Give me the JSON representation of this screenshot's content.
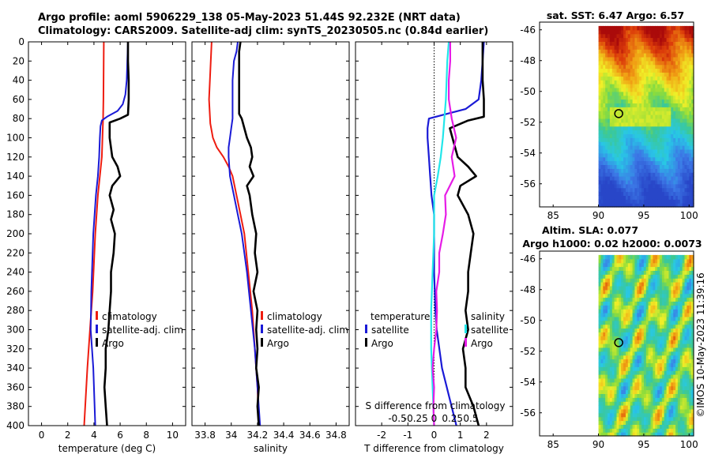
{
  "header": {
    "line1": "Argo profile: aoml 5906229_138 05-May-2023 51.44S 92.232E (NRT data)",
    "line2": "Climatology: CARS2009. Satellite-adj clim: synTS_20230505.nc (0.84d earlier)"
  },
  "colors": {
    "climatology": "#ee1c10",
    "satellite": "#1a1ad6",
    "argo": "#000000",
    "sal_satellite": "#22e6ea",
    "sal_argo": "#e61ce6",
    "zero_line": "#000000"
  },
  "chart_data": [
    {
      "type": "line",
      "name": "temperature",
      "xlabel": "temperature (deg C)",
      "ylabel": "",
      "xlim": [
        -1,
        11
      ],
      "ylim": [
        400,
        0
      ],
      "xticks": [
        0,
        2,
        4,
        6,
        8,
        10
      ],
      "yticks": [
        0,
        20,
        40,
        60,
        80,
        100,
        120,
        140,
        160,
        180,
        200,
        220,
        240,
        260,
        280,
        300,
        320,
        340,
        360,
        380,
        400
      ],
      "legend": [
        "climatology",
        "satellite-adj. clim",
        "Argo"
      ],
      "legend_position": "lower-right",
      "series": [
        {
          "name": "climatology",
          "depth": [
            0,
            60,
            80,
            100,
            120,
            140,
            160,
            200,
            260,
            300,
            340,
            400
          ],
          "values": [
            4.75,
            4.72,
            4.7,
            4.65,
            4.6,
            4.45,
            4.3,
            4.1,
            3.9,
            3.7,
            3.5,
            3.25
          ]
        },
        {
          "name": "satellite-adj. clim",
          "depth": [
            0,
            20,
            40,
            55,
            65,
            72,
            78,
            82,
            88,
            100,
            120,
            140,
            160,
            200,
            260,
            300,
            340,
            400
          ],
          "values": [
            6.6,
            6.55,
            6.5,
            6.4,
            6.2,
            5.8,
            5.0,
            4.6,
            4.5,
            4.45,
            4.4,
            4.3,
            4.15,
            3.95,
            3.8,
            3.75,
            3.95,
            4.1
          ]
        },
        {
          "name": "Argo",
          "depth": [
            0,
            20,
            40,
            60,
            76,
            80,
            84,
            100,
            120,
            130,
            140,
            150,
            160,
            175,
            185,
            200,
            220,
            240,
            260,
            280,
            300,
            320,
            340,
            360,
            380,
            400
          ],
          "values": [
            6.6,
            6.6,
            6.65,
            6.65,
            6.6,
            6.0,
            5.2,
            5.2,
            5.4,
            5.8,
            6.0,
            5.4,
            5.2,
            5.5,
            5.3,
            5.6,
            5.5,
            5.3,
            5.3,
            5.2,
            5.1,
            4.9,
            4.9,
            4.8,
            4.9,
            5.0
          ]
        }
      ]
    },
    {
      "type": "line",
      "name": "salinity",
      "xlabel": "salinity",
      "ylabel": "",
      "xlim": [
        33.7,
        34.9
      ],
      "ylim": [
        400,
        0
      ],
      "xticks": [
        33.8,
        34,
        34.2,
        34.4,
        34.6,
        34.8
      ],
      "legend": [
        "climatology",
        "satellite-adj. clim",
        "Argo"
      ],
      "legend_position": "lower-right",
      "series": [
        {
          "name": "climatology",
          "depth": [
            0,
            60,
            85,
            100,
            110,
            120,
            130,
            140,
            160,
            180,
            200,
            240,
            280,
            320,
            360,
            400
          ],
          "values": [
            33.85,
            33.83,
            33.84,
            33.86,
            33.89,
            33.94,
            33.98,
            34.01,
            34.04,
            34.07,
            34.1,
            34.13,
            34.16,
            34.18,
            34.2,
            34.21
          ]
        },
        {
          "name": "satellite-adj. clim",
          "depth": [
            0,
            10,
            20,
            40,
            60,
            80,
            90,
            100,
            110,
            120,
            140,
            160,
            180,
            200,
            240,
            280,
            320,
            360,
            400
          ],
          "values": [
            34.05,
            34.04,
            34.02,
            34.01,
            34.01,
            34.01,
            34.0,
            33.99,
            33.98,
            33.98,
            33.99,
            34.02,
            34.05,
            34.08,
            34.12,
            34.15,
            34.18,
            34.2,
            34.22
          ]
        },
        {
          "name": "Argo",
          "depth": [
            0,
            10,
            20,
            40,
            60,
            75,
            80,
            90,
            100,
            110,
            120,
            130,
            140,
            150,
            160,
            180,
            200,
            220,
            240,
            260,
            280,
            300,
            320,
            340,
            360,
            380,
            400
          ],
          "values": [
            34.07,
            34.06,
            34.06,
            34.06,
            34.06,
            34.06,
            34.08,
            34.1,
            34.12,
            34.15,
            34.16,
            34.14,
            34.17,
            34.12,
            34.14,
            34.16,
            34.19,
            34.18,
            34.2,
            34.17,
            34.2,
            34.19,
            34.2,
            34.19,
            34.21,
            34.2,
            34.21
          ]
        }
      ]
    },
    {
      "type": "line",
      "name": "differences",
      "xlabel": "T difference from climatology",
      "x2label": "S difference from climatology",
      "xlim": [
        -3,
        3
      ],
      "ylim": [
        400,
        0
      ],
      "xticks": [
        -2,
        -1,
        0,
        1,
        2
      ],
      "x2ticks": [
        -0.5,
        -0.25,
        0,
        0.25,
        0.5
      ],
      "x2tick_labels": [
        "-0.5",
        "-0.25",
        "0",
        "0.25",
        "0.5"
      ],
      "legend": [
        {
          "group": "temperature",
          "items": [
            "satellite",
            "Argo"
          ]
        },
        {
          "group": "salinity",
          "items": [
            "satellite",
            "Argo"
          ]
        }
      ],
      "series": [
        {
          "name": "T satellite",
          "depth": [
            0,
            20,
            40,
            60,
            70,
            75,
            80,
            90,
            100,
            120,
            140,
            160,
            180,
            200,
            240,
            280,
            300,
            340,
            400
          ],
          "values": [
            1.9,
            1.85,
            1.8,
            1.7,
            1.2,
            0.5,
            -0.2,
            -0.25,
            -0.25,
            -0.2,
            -0.15,
            -0.1,
            0.0,
            0.0,
            0.0,
            0.05,
            0.1,
            0.3,
            0.85
          ]
        },
        {
          "name": "T Argo",
          "depth": [
            0,
            20,
            40,
            60,
            78,
            82,
            90,
            100,
            120,
            130,
            140,
            150,
            160,
            180,
            200,
            220,
            240,
            260,
            280,
            300,
            320,
            340,
            360,
            380,
            400
          ],
          "values": [
            1.85,
            1.85,
            1.85,
            1.9,
            1.9,
            1.3,
            0.6,
            0.7,
            0.9,
            1.3,
            1.6,
            1.0,
            0.9,
            1.3,
            1.5,
            1.4,
            1.3,
            1.3,
            1.2,
            1.3,
            1.1,
            1.2,
            1.2,
            1.5,
            1.7
          ]
        },
        {
          "name": "S satellite",
          "depth": [
            0,
            20,
            40,
            60,
            80,
            100,
            120,
            140,
            160,
            200,
            240,
            280,
            320,
            360,
            400
          ],
          "values": [
            0.2,
            0.18,
            0.17,
            0.16,
            0.14,
            0.12,
            0.09,
            0.05,
            0.0,
            0.0,
            -0.02,
            -0.04,
            -0.04,
            -0.02,
            0.0
          ]
        },
        {
          "name": "S Argo",
          "depth": [
            0,
            20,
            40,
            60,
            80,
            100,
            120,
            140,
            160,
            180,
            200,
            220,
            240,
            260,
            280,
            300,
            320,
            340,
            360,
            380,
            400
          ],
          "values": [
            0.22,
            0.22,
            0.2,
            0.2,
            0.24,
            0.3,
            0.24,
            0.28,
            0.15,
            0.16,
            0.12,
            0.07,
            0.07,
            0.03,
            0.04,
            0.03,
            0.0,
            -0.02,
            0.0,
            -0.01,
            0.0
          ]
        }
      ]
    },
    {
      "type": "heatmap",
      "name": "sst-map",
      "title": "sat. SST: 6.47 Argo: 6.57",
      "xlim": [
        83.5,
        100.5
      ],
      "ylim": [
        -57.5,
        -45.5
      ],
      "xticks": [
        85,
        90,
        95,
        100
      ],
      "yticks": [
        -46,
        -48,
        -50,
        -52,
        -54,
        -56
      ],
      "marker": {
        "lon": 92.232,
        "lat": -51.44
      }
    },
    {
      "type": "heatmap",
      "name": "sla-map",
      "title_line1": "Altim. SLA: 0.077",
      "title_line2": "Argo h1000: 0.02 h2000: 0.0073",
      "xlim": [
        83.5,
        100.5
      ],
      "ylim": [
        -57.5,
        -45.5
      ],
      "xticks": [
        85,
        90,
        95,
        100
      ],
      "yticks": [
        -46,
        -48,
        -50,
        -52,
        -54,
        -56
      ],
      "marker": {
        "lon": 92.232,
        "lat": -51.44
      }
    }
  ],
  "legend_labels": {
    "climatology": "climatology",
    "satellite_adj": "satellite-adj. clim",
    "argo": "Argo",
    "temperature": "temperature",
    "salinity": "salinity",
    "satellite": "satellite"
  },
  "stamp": "©IMOS 10-May-2023 11:39:16"
}
